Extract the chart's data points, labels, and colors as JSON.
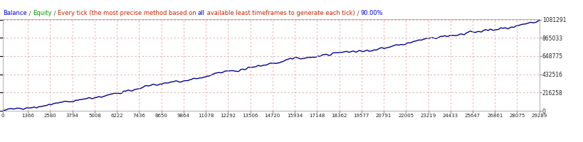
{
  "title_parts": [
    [
      "Balance",
      "#0000dd"
    ],
    [
      " / ",
      "#555555"
    ],
    [
      "Equity",
      "#009900"
    ],
    [
      " / ",
      "#555555"
    ],
    [
      "Every tick (the most precise method based on ",
      "#cc2200"
    ],
    [
      "all",
      "#0000dd"
    ],
    [
      " available least timeframes to generate each tick)",
      "#cc2200"
    ],
    [
      " / ",
      "#555555"
    ],
    [
      "90.00%",
      "#0000dd"
    ]
  ],
  "bg_color": "#ffffff",
  "plot_bg_color": "#ffffff",
  "grid_color": "#ddaaaa",
  "line_color": "#00008b",
  "line_width": 1.0,
  "x_ticks": [
    0,
    1366,
    2580,
    3794,
    5008,
    6222,
    7436,
    8650,
    9864,
    11078,
    12292,
    13506,
    14720,
    15934,
    17148,
    18362,
    19577,
    20791,
    22005,
    23219,
    24433,
    25647,
    26861,
    28075,
    29289
  ],
  "y_ticks": [
    0,
    216258,
    432516,
    648775,
    865033,
    1081291
  ],
  "x_min": 0,
  "x_max": 29289,
  "y_min": 0,
  "y_max": 1081291,
  "n_points": 800
}
